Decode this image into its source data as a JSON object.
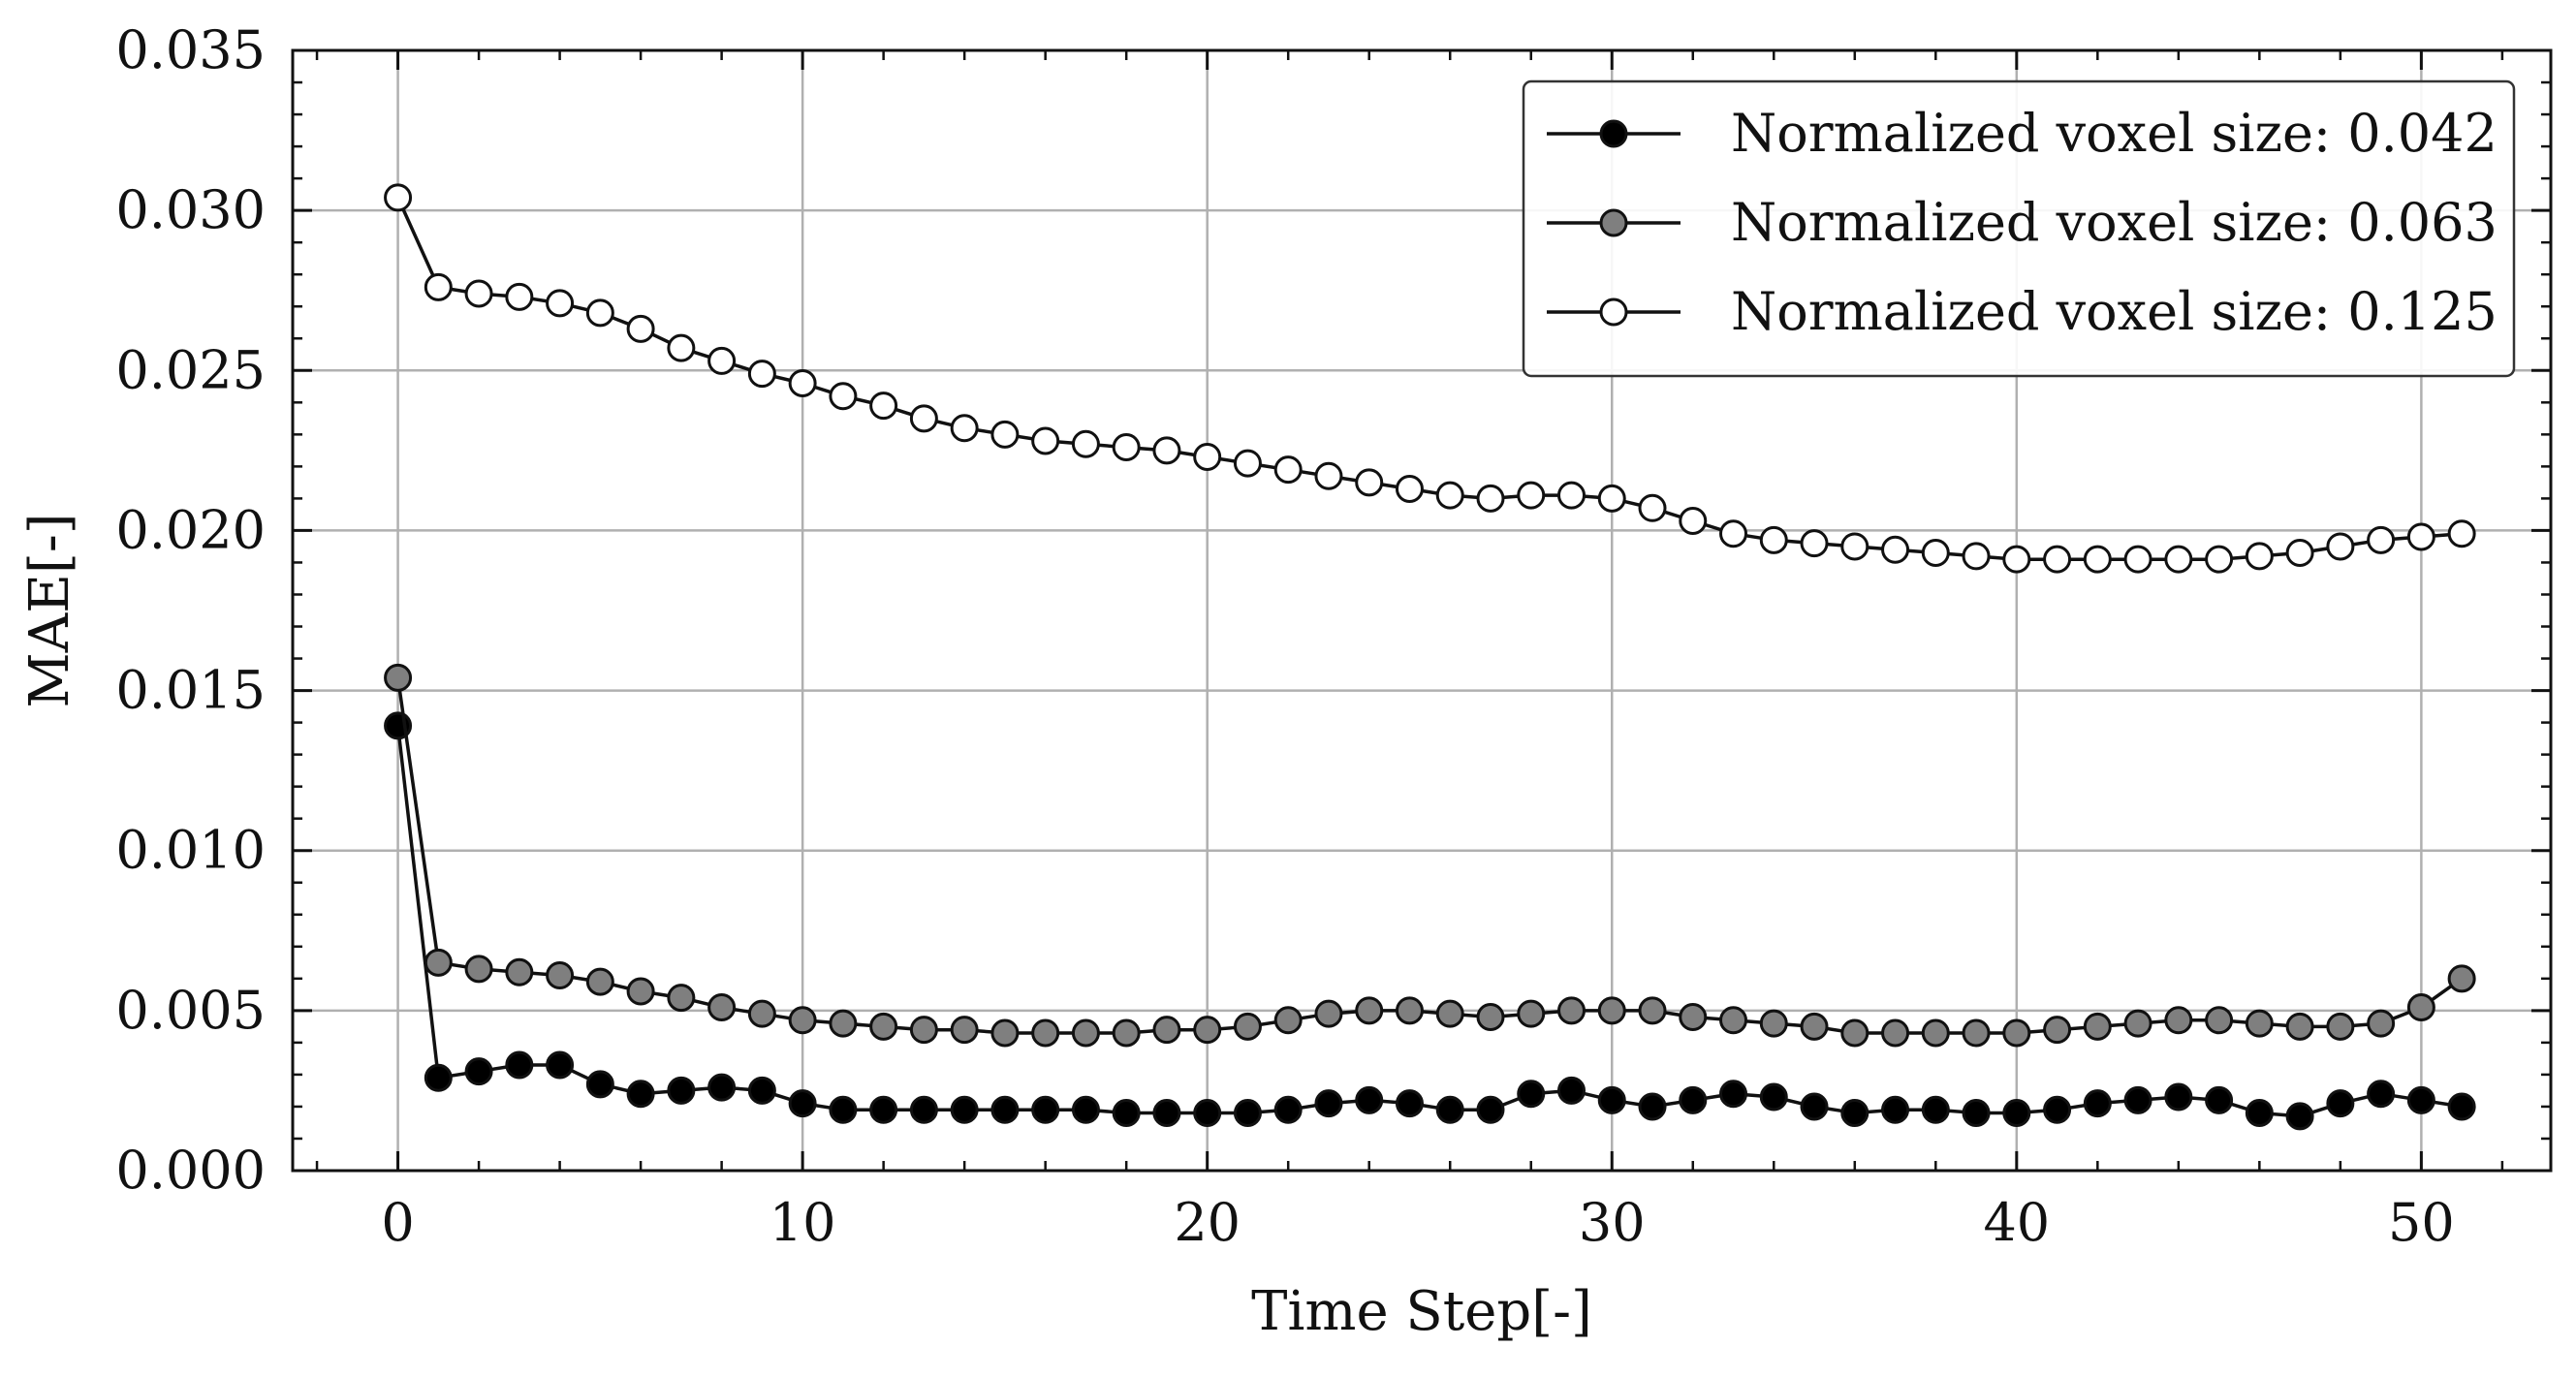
{
  "chart_data": {
    "type": "line",
    "title": "",
    "xlabel": "Time Step[-]",
    "ylabel": "MAE[-]",
    "xlim": [
      -2.6,
      53.2
    ],
    "ylim": [
      0.0,
      0.035
    ],
    "xticks": [
      0,
      10,
      20,
      30,
      40,
      50
    ],
    "xtick_labels": [
      "0",
      "10",
      "20",
      "30",
      "40",
      "50"
    ],
    "yticks": [
      0.0,
      0.005,
      0.01,
      0.015,
      0.02,
      0.025,
      0.03,
      0.035
    ],
    "ytick_labels": [
      "0.000",
      "0.005",
      "0.010",
      "0.015",
      "0.020",
      "0.025",
      "0.030",
      "0.035"
    ],
    "grid": true,
    "legend_position": "top-right",
    "x": [
      0,
      1,
      2,
      3,
      4,
      5,
      6,
      7,
      8,
      9,
      10,
      11,
      12,
      13,
      14,
      15,
      16,
      17,
      18,
      19,
      20,
      21,
      22,
      23,
      24,
      25,
      26,
      27,
      28,
      29,
      30,
      31,
      32,
      33,
      34,
      35,
      36,
      37,
      38,
      39,
      40,
      41,
      42,
      43,
      44,
      45,
      46,
      47,
      48,
      49,
      50,
      51
    ],
    "series": [
      {
        "name": "Normalized voxel size: 0.042",
        "marker_fill": "#000000",
        "values": [
          0.0139,
          0.0029,
          0.0031,
          0.0033,
          0.0033,
          0.0027,
          0.0024,
          0.0025,
          0.0026,
          0.0025,
          0.0021,
          0.0019,
          0.0019,
          0.0019,
          0.0019,
          0.0019,
          0.0019,
          0.0019,
          0.0018,
          0.0018,
          0.0018,
          0.0018,
          0.0019,
          0.0021,
          0.0022,
          0.0021,
          0.0019,
          0.0019,
          0.0024,
          0.0025,
          0.0022,
          0.002,
          0.0022,
          0.0024,
          0.0023,
          0.002,
          0.0018,
          0.0019,
          0.0019,
          0.0018,
          0.0018,
          0.0019,
          0.0021,
          0.0022,
          0.0023,
          0.0022,
          0.0018,
          0.0017,
          0.0021,
          0.0024,
          0.0022,
          0.002
        ]
      },
      {
        "name": "Normalized voxel size: 0.063",
        "marker_fill": "#7f7f7f",
        "values": [
          0.0154,
          0.0065,
          0.0063,
          0.0062,
          0.0061,
          0.0059,
          0.0056,
          0.0054,
          0.0051,
          0.0049,
          0.0047,
          0.0046,
          0.0045,
          0.0044,
          0.0044,
          0.0043,
          0.0043,
          0.0043,
          0.0043,
          0.0044,
          0.0044,
          0.0045,
          0.0047,
          0.0049,
          0.005,
          0.005,
          0.0049,
          0.0048,
          0.0049,
          0.005,
          0.005,
          0.005,
          0.0048,
          0.0047,
          0.0046,
          0.0045,
          0.0043,
          0.0043,
          0.0043,
          0.0043,
          0.0043,
          0.0044,
          0.0045,
          0.0046,
          0.0047,
          0.0047,
          0.0046,
          0.0045,
          0.0045,
          0.0046,
          0.0051,
          0.006
        ]
      },
      {
        "name": "Normalized voxel size: 0.125",
        "marker_fill": "#ffffff",
        "values": [
          0.0304,
          0.0276,
          0.0274,
          0.0273,
          0.0271,
          0.0268,
          0.0263,
          0.0257,
          0.0253,
          0.0249,
          0.0246,
          0.0242,
          0.0239,
          0.0235,
          0.0232,
          0.023,
          0.0228,
          0.0227,
          0.0226,
          0.0225,
          0.0223,
          0.0221,
          0.0219,
          0.0217,
          0.0215,
          0.0213,
          0.0211,
          0.021,
          0.0211,
          0.0211,
          0.021,
          0.0207,
          0.0203,
          0.0199,
          0.0197,
          0.0196,
          0.0195,
          0.0194,
          0.0193,
          0.0192,
          0.0191,
          0.0191,
          0.0191,
          0.0191,
          0.0191,
          0.0191,
          0.0192,
          0.0193,
          0.0195,
          0.0197,
          0.0198,
          0.0199
        ]
      }
    ],
    "colors": {
      "line": "#111111",
      "grid": "#b0b0b0",
      "axes": "#111111",
      "legend_border": "#333333"
    }
  }
}
